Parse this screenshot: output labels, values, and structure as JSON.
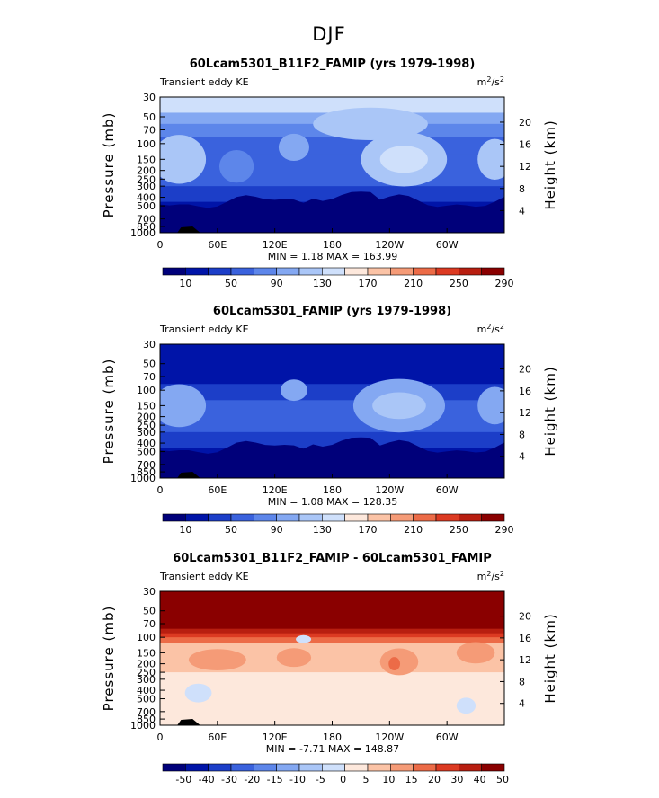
{
  "figure_title": "DJF",
  "colors": {
    "ke_scale": [
      "#00007a",
      "#0014a8",
      "#1c3ec8",
      "#3a62dd",
      "#5d86ea",
      "#84a8f2",
      "#aac6f7",
      "#cfe0fb",
      "#fde8dc",
      "#fbc3a6",
      "#f59b77",
      "#ec6b47",
      "#dc3a22",
      "#b81e10",
      "#8a0000"
    ],
    "diff_scale": [
      "#00007a",
      "#0014a8",
      "#1c3ec8",
      "#3a62dd",
      "#5d86ea",
      "#84a8f2",
      "#aac6f7",
      "#cfe0fb",
      "#fde8dc",
      "#fbc3a6",
      "#f59b77",
      "#ec6b47",
      "#dc3a22",
      "#b81e10",
      "#8a0000"
    ]
  },
  "chart_data": [
    {
      "type": "heatmap",
      "title": "60Lcam5301_B11F2_FAMIP (yrs 1979-1998)",
      "left_label": "Transient eddy KE",
      "units_base": "m",
      "units_exp1": "2",
      "units_mid": "/s",
      "units_exp2": "2",
      "ylabel": "Pressure (mb)",
      "y2label": "Height (km)",
      "x_ticks": [
        "0",
        "60E",
        "120E",
        "180",
        "120W",
        "60W"
      ],
      "x_values": [
        0,
        60,
        120,
        180,
        240,
        300
      ],
      "xlim": [
        0,
        360
      ],
      "p_ticks": [
        "30",
        "50",
        "70",
        "100",
        "150",
        "200",
        "250",
        "300",
        "400",
        "500",
        "700",
        "850",
        "1000"
      ],
      "p_values": [
        30,
        50,
        70,
        100,
        150,
        200,
        250,
        300,
        400,
        500,
        700,
        850,
        1000
      ],
      "plim": [
        30,
        1000
      ],
      "h_ticks": [
        "4",
        "8",
        "12",
        "16",
        "20"
      ],
      "h_values": [
        4,
        8,
        12,
        16,
        20
      ],
      "min_label": "MIN = ",
      "min_value": "1.18",
      "max_label": "MAX = ",
      "max_value": "163.99",
      "scale": "ke",
      "colorbar_labels": [
        "10",
        "50",
        "90",
        "130",
        "170",
        "210",
        "250",
        "290"
      ],
      "colorbar_levels": [
        10,
        30,
        50,
        70,
        90,
        110,
        130,
        150,
        170,
        190,
        210,
        230,
        250,
        270,
        290
      ],
      "bands": [
        {
          "p": 30,
          "lev": 7
        },
        {
          "p": 45,
          "lev": 5
        },
        {
          "p": 60,
          "lev": 4
        },
        {
          "p": 85,
          "lev": 3
        },
        {
          "p": 130,
          "lev": 3
        },
        {
          "p": 200,
          "lev": 3
        },
        {
          "p": 300,
          "lev": 2
        },
        {
          "p": 450,
          "lev": 1
        },
        {
          "p": 750,
          "lev": 0
        },
        {
          "p": 1000,
          "lev": 0
        }
      ],
      "blobs": [
        {
          "lon": 20,
          "p": 150,
          "rx": 28,
          "rp": 0.18,
          "lev": 6
        },
        {
          "lon": 80,
          "p": 180,
          "rx": 18,
          "rp": 0.12,
          "lev": 4
        },
        {
          "lon": 140,
          "p": 110,
          "rx": 16,
          "rp": 0.1,
          "lev": 5
        },
        {
          "lon": 255,
          "p": 150,
          "rx": 45,
          "rp": 0.2,
          "lev": 6
        },
        {
          "lon": 255,
          "p": 150,
          "rx": 25,
          "rp": 0.1,
          "lev": 7
        },
        {
          "lon": 350,
          "p": 150,
          "rx": 18,
          "rp": 0.15,
          "lev": 6
        },
        {
          "lon": 220,
          "p": 60,
          "rx": 60,
          "rp": 0.12,
          "lev": 6
        }
      ]
    },
    {
      "type": "heatmap",
      "title": "60Lcam5301_FAMIP (yrs 1979-1998)",
      "left_label": "Transient eddy KE",
      "units_base": "m",
      "units_exp1": "2",
      "units_mid": "/s",
      "units_exp2": "2",
      "ylabel": "Pressure (mb)",
      "y2label": "Height (km)",
      "x_ticks": [
        "0",
        "60E",
        "120E",
        "180",
        "120W",
        "60W"
      ],
      "x_values": [
        0,
        60,
        120,
        180,
        240,
        300
      ],
      "xlim": [
        0,
        360
      ],
      "p_ticks": [
        "30",
        "50",
        "70",
        "100",
        "150",
        "200",
        "250",
        "300",
        "400",
        "500",
        "700",
        "850",
        "1000"
      ],
      "p_values": [
        30,
        50,
        70,
        100,
        150,
        200,
        250,
        300,
        400,
        500,
        700,
        850,
        1000
      ],
      "plim": [
        30,
        1000
      ],
      "h_ticks": [
        "4",
        "8",
        "12",
        "16",
        "20"
      ],
      "h_values": [
        4,
        8,
        12,
        16,
        20
      ],
      "min_label": "MIN = ",
      "min_value": "1.08",
      "max_label": "MAX = ",
      "max_value": "128.35",
      "scale": "ke",
      "colorbar_labels": [
        "10",
        "50",
        "90",
        "130",
        "170",
        "210",
        "250",
        "290"
      ],
      "colorbar_levels": [
        10,
        30,
        50,
        70,
        90,
        110,
        130,
        150,
        170,
        190,
        210,
        230,
        250,
        270,
        290
      ],
      "bands": [
        {
          "p": 30,
          "lev": 1
        },
        {
          "p": 70,
          "lev": 1
        },
        {
          "p": 85,
          "lev": 2
        },
        {
          "p": 130,
          "lev": 3
        },
        {
          "p": 200,
          "lev": 3
        },
        {
          "p": 300,
          "lev": 2
        },
        {
          "p": 450,
          "lev": 1
        },
        {
          "p": 750,
          "lev": 0
        },
        {
          "p": 1000,
          "lev": 0
        }
      ],
      "blobs": [
        {
          "lon": 20,
          "p": 150,
          "rx": 28,
          "rp": 0.16,
          "lev": 5
        },
        {
          "lon": 140,
          "p": 100,
          "rx": 14,
          "rp": 0.08,
          "lev": 5
        },
        {
          "lon": 250,
          "p": 150,
          "rx": 48,
          "rp": 0.2,
          "lev": 5
        },
        {
          "lon": 250,
          "p": 150,
          "rx": 28,
          "rp": 0.1,
          "lev": 6
        },
        {
          "lon": 350,
          "p": 150,
          "rx": 18,
          "rp": 0.14,
          "lev": 5
        }
      ]
    },
    {
      "type": "heatmap",
      "title": "60Lcam5301_B11F2_FAMIP - 60Lcam5301_FAMIP",
      "left_label": "Transient eddy KE",
      "units_base": "m",
      "units_exp1": "2",
      "units_mid": "/s",
      "units_exp2": "2",
      "ylabel": "Pressure (mb)",
      "y2label": "Height (km)",
      "x_ticks": [
        "0",
        "60E",
        "120E",
        "180",
        "120W",
        "60W"
      ],
      "x_values": [
        0,
        60,
        120,
        180,
        240,
        300
      ],
      "xlim": [
        0,
        360
      ],
      "p_ticks": [
        "30",
        "50",
        "70",
        "100",
        "150",
        "200",
        "250",
        "300",
        "400",
        "500",
        "700",
        "850",
        "1000"
      ],
      "p_values": [
        30,
        50,
        70,
        100,
        150,
        200,
        250,
        300,
        400,
        500,
        700,
        850,
        1000
      ],
      "plim": [
        30,
        1000
      ],
      "h_ticks": [
        "4",
        "8",
        "12",
        "16",
        "20"
      ],
      "h_values": [
        4,
        8,
        12,
        16,
        20
      ],
      "min_label": "MIN = ",
      "min_value": "-7.71",
      "max_label": "MAX = ",
      "max_value": "148.87",
      "scale": "diff",
      "colorbar_labels": [
        "-50",
        "-40",
        "-30",
        "-20",
        "-15",
        "-10",
        "-5",
        "0",
        "5",
        "10",
        "15",
        "20",
        "30",
        "40",
        "50"
      ],
      "colorbar_levels": [
        -50,
        -40,
        -30,
        -20,
        -15,
        -10,
        -5,
        0,
        5,
        10,
        15,
        20,
        30,
        40,
        50
      ],
      "bands": [
        {
          "p": 30,
          "lev": 14
        },
        {
          "p": 70,
          "lev": 14
        },
        {
          "p": 80,
          "lev": 13
        },
        {
          "p": 90,
          "lev": 12
        },
        {
          "p": 100,
          "lev": 11
        },
        {
          "p": 115,
          "lev": 9
        },
        {
          "p": 150,
          "lev": 9
        },
        {
          "p": 200,
          "lev": 9
        },
        {
          "p": 250,
          "lev": 8
        },
        {
          "p": 1000,
          "lev": 8
        }
      ],
      "blobs": [
        {
          "lon": 60,
          "p": 180,
          "rx": 30,
          "rp": 0.08,
          "lev": 10
        },
        {
          "lon": 140,
          "p": 170,
          "rx": 18,
          "rp": 0.07,
          "lev": 10
        },
        {
          "lon": 250,
          "p": 190,
          "rx": 20,
          "rp": 0.1,
          "lev": 10
        },
        {
          "lon": 245,
          "p": 200,
          "rx": 6,
          "rp": 0.05,
          "lev": 11
        },
        {
          "lon": 330,
          "p": 150,
          "rx": 20,
          "rp": 0.08,
          "lev": 10
        },
        {
          "lon": 40,
          "p": 430,
          "rx": 14,
          "rp": 0.07,
          "lev": 7
        },
        {
          "lon": 320,
          "p": 600,
          "rx": 10,
          "rp": 0.06,
          "lev": 7
        },
        {
          "lon": 150,
          "p": 105,
          "rx": 8,
          "rp": 0.03,
          "lev": 7
        }
      ]
    }
  ]
}
